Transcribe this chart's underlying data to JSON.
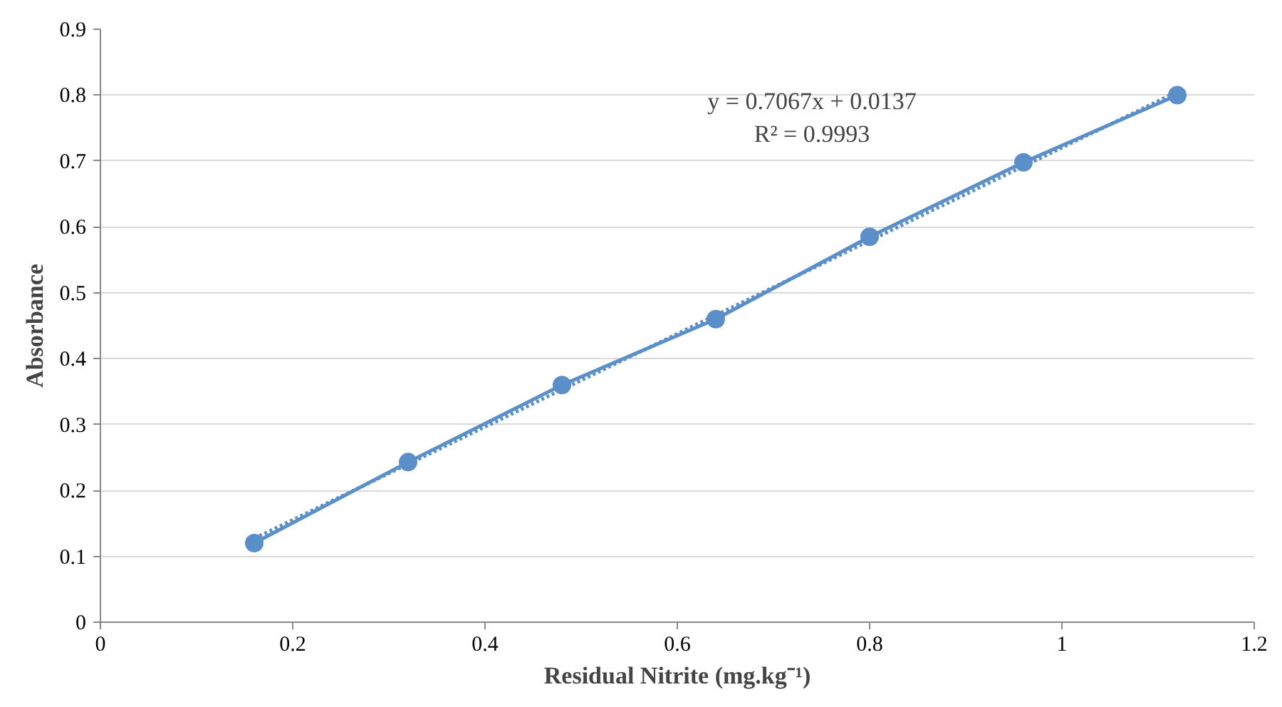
{
  "chart_data": {
    "type": "line",
    "xlabel": "Residual Nitrite (mg.kg⁻¹)",
    "ylabel": "Absorbance",
    "x": [
      0.16,
      0.32,
      0.48,
      0.64,
      0.8,
      0.96,
      1.12
    ],
    "series": [
      {
        "color": "#5b8fc9",
        "marker": "circle",
        "line_style": "solid",
        "values": [
          0.12,
          0.243,
          0.36,
          0.46,
          0.585,
          0.698,
          0.8
        ]
      },
      {
        "color": "#5b8fc9",
        "marker": "none",
        "line_style": "dotted",
        "x": [
          0.16,
          1.12
        ],
        "values": [
          0.127,
          0.805
        ]
      }
    ],
    "annotations": [
      "y = 0.7067x + 0.0137",
      "R² = 0.9993"
    ],
    "xlim": [
      0,
      1.2
    ],
    "ylim": [
      0,
      0.9
    ],
    "xticks": [
      0,
      0.2,
      0.4,
      0.6,
      0.8,
      1,
      1.2
    ],
    "yticks": [
      0,
      0.1,
      0.2,
      0.3,
      0.4,
      0.5,
      0.6,
      0.7,
      0.8,
      0.9
    ],
    "grid": "y"
  }
}
